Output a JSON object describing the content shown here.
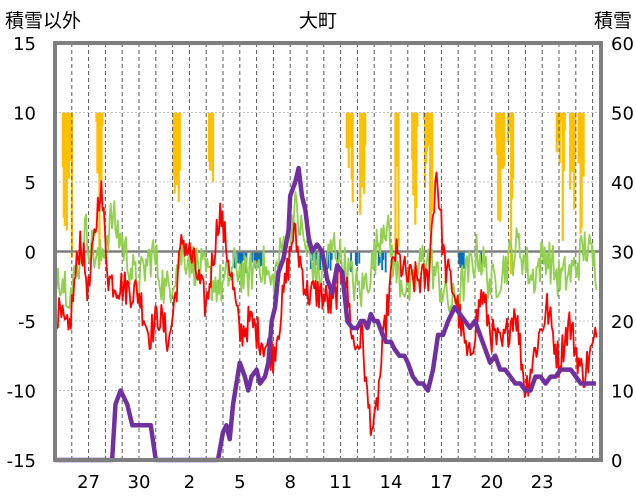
{
  "chart_data": {
    "type": "line",
    "title": "大町",
    "y_left_label": "積雪以外",
    "y_right_label": "積雪",
    "y_left_range": [
      -15,
      15
    ],
    "y_right_range": [
      0,
      60
    ],
    "y_left_ticks": [
      15,
      10,
      5,
      0,
      -5,
      -10,
      -15
    ],
    "y_right_ticks": [
      60,
      50,
      40,
      30,
      20,
      10,
      0
    ],
    "x_tick_labels": [
      "27",
      "30",
      "2",
      "5",
      "8",
      "11",
      "14",
      "17",
      "20",
      "23"
    ],
    "x_tick_days": [
      2,
      5,
      8,
      11,
      14,
      17,
      20,
      23,
      26,
      29
    ],
    "x_range_days": [
      0,
      32.5
    ],
    "grid": true,
    "colors": {
      "snow_depth": "#7030a0",
      "temperature_red": "#ff0000",
      "temperature_green": "#92d050",
      "bars_yellow": "#ffc000",
      "bars_blue": "#0070c0",
      "zero_line": "#7f7f7f",
      "frame": "#7f7f7f"
    },
    "series": [
      {
        "axis": "right",
        "x": [
          0,
          3.4,
          3.6,
          3.9,
          4.3,
          4.6,
          5.7,
          6.0,
          9.7,
          10.0,
          10.2,
          10.4,
          10.6,
          11.0,
          11.3,
          11.5,
          11.7,
          12.0,
          12.2,
          12.5,
          12.7,
          12.9,
          13.1,
          13.3,
          13.6,
          13.9,
          14.0,
          14.3,
          14.5,
          14.7,
          14.9,
          15.1,
          15.3,
          15.6,
          15.9,
          16.2,
          16.5,
          16.8,
          17.1,
          17.4,
          17.7,
          18.0,
          18.2,
          18.4,
          18.6,
          18.8,
          19.0,
          19.2,
          19.5,
          19.7,
          20.0,
          20.2,
          20.5,
          20.8,
          21.0,
          21.3,
          21.6,
          21.9,
          22.2,
          22.5,
          22.8,
          23.1,
          23.4,
          23.8,
          24.1,
          24.4,
          24.7,
          25.0,
          25.3,
          25.6,
          25.9,
          26.2,
          26.5,
          26.8,
          27.1,
          27.4,
          27.7,
          28.0,
          28.3,
          28.6,
          28.9,
          29.2,
          29.5,
          29.8,
          30.1,
          30.4,
          30.7,
          31.0,
          31.3,
          31.6,
          31.9,
          32.2
        ],
        "y": [
          0,
          0,
          8,
          10,
          8,
          5,
          5,
          0,
          0,
          4,
          5,
          3,
          8,
          14,
          12,
          10,
          12,
          13,
          11,
          12,
          14,
          20,
          22,
          27,
          29,
          33,
          38,
          40,
          42,
          38,
          36,
          32,
          30,
          31,
          30,
          26,
          24,
          28,
          27,
          20,
          19,
          19,
          20,
          20,
          19,
          21,
          20,
          20,
          18,
          17,
          17,
          16,
          15,
          15,
          14,
          12,
          11,
          11,
          10,
          13,
          18,
          18,
          20,
          22,
          21,
          20,
          19,
          20,
          18,
          16,
          14,
          15,
          13,
          13,
          12,
          11,
          11,
          10,
          10,
          12,
          12,
          11,
          12,
          12,
          13,
          13,
          13,
          12,
          11,
          11,
          11,
          11
        ]
      }
    ]
  }
}
